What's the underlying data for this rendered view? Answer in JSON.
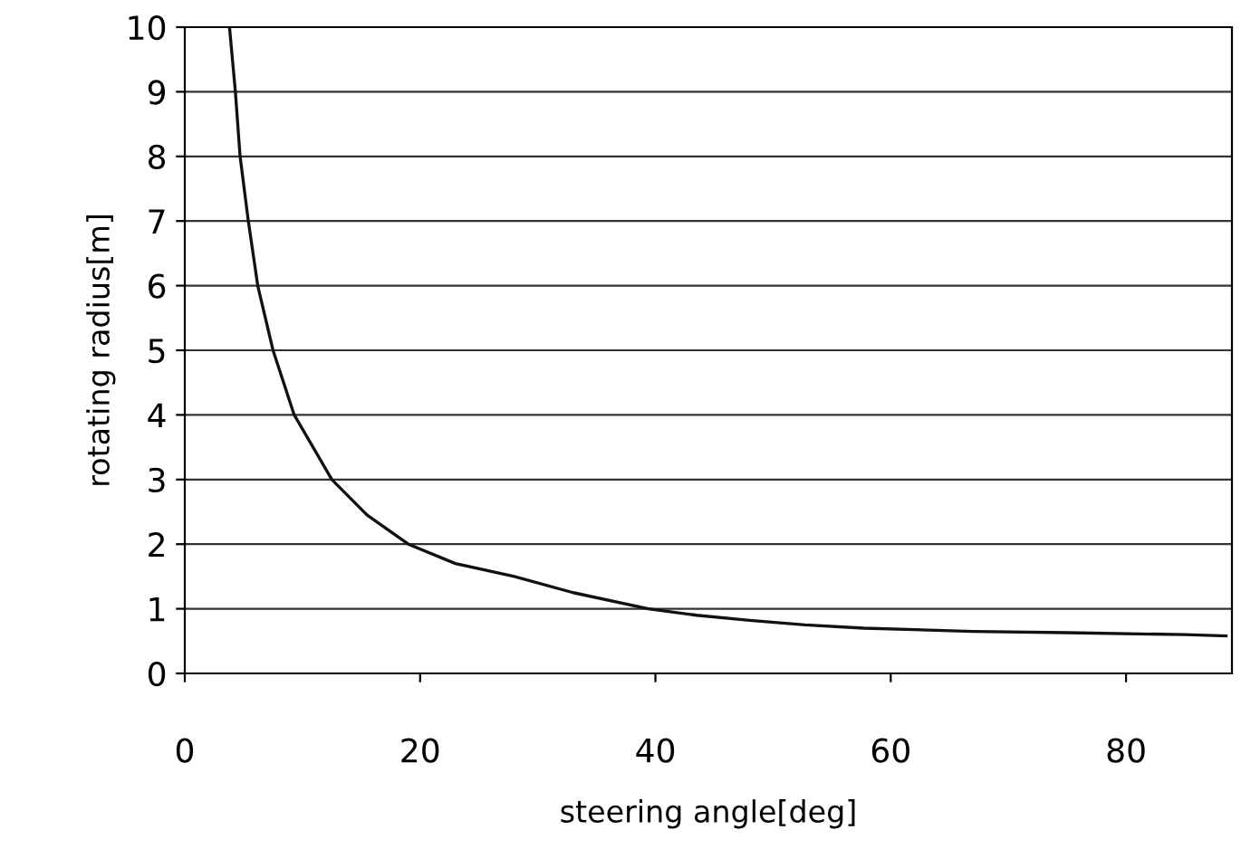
{
  "chart_data": {
    "type": "line",
    "xlabel": "steering angle[deg]",
    "ylabel": "rotating radius[m]",
    "x": [
      3.8,
      4.3,
      4.7,
      5.4,
      6.2,
      7.5,
      9.3,
      12.5,
      15.5,
      19,
      23,
      28,
      33,
      39.4,
      43.5,
      48,
      52.7,
      57.7,
      67,
      75,
      85,
      88.5
    ],
    "series": [
      {
        "color": "#111111",
        "values": [
          10,
          9,
          8,
          7,
          6,
          5,
          4,
          3,
          2.45,
          2,
          1.7,
          1.5,
          1.25,
          1.0,
          0.9,
          0.82,
          0.75,
          0.7,
          0.65,
          0.63,
          0.6,
          0.58
        ]
      }
    ],
    "xlim": [
      0,
      89
    ],
    "ylim": [
      0,
      10
    ],
    "xticks": [
      0,
      20,
      40,
      60,
      80
    ],
    "yticks": [
      0,
      1,
      2,
      3,
      4,
      5,
      6,
      7,
      8,
      9,
      10
    ],
    "grid": "y",
    "marker": "none",
    "line_style": "solid",
    "legend": false
  }
}
